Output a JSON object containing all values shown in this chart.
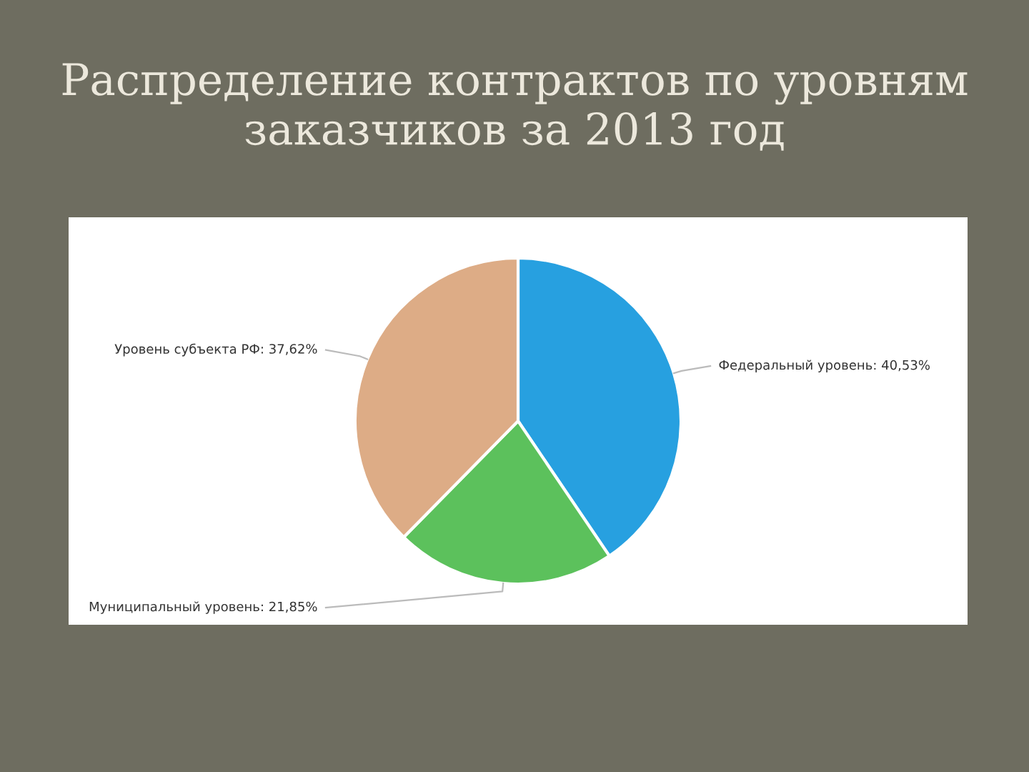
{
  "chart_data": {
    "type": "pie",
    "title": "Распределение контрактов по уровням заказчиков за 2013 год",
    "categories": [
      "Федеральный уровень",
      "Муниципальный уровень",
      "Уровень субъекта РФ"
    ],
    "values": [
      40.53,
      21.85,
      37.62
    ],
    "value_labels": [
      ": 40,53%",
      ": 21,85%",
      ": 37,62%"
    ],
    "colors": [
      "#27a0e0",
      "#5cc15c",
      "#ddac86"
    ],
    "legend": false
  }
}
